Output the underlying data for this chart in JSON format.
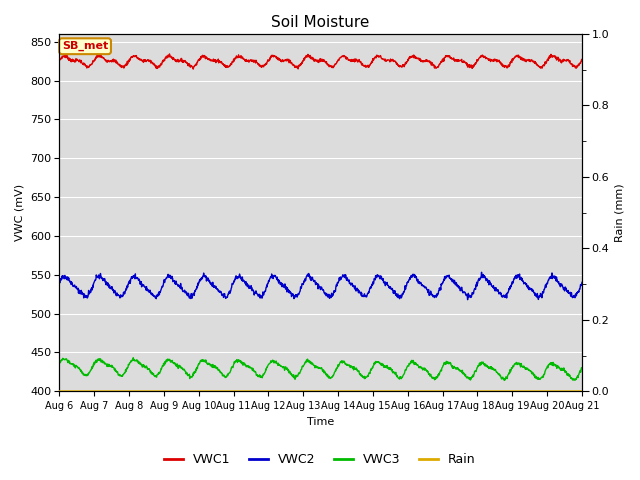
{
  "title": "Soil Moisture",
  "xlabel": "Time",
  "ylabel_left": "VWC (mV)",
  "ylabel_right": "Rain (mm)",
  "ylim_left": [
    400,
    860
  ],
  "ylim_right": [
    0.0,
    1.0
  ],
  "yticks_left": [
    400,
    450,
    500,
    550,
    600,
    650,
    700,
    750,
    800,
    850
  ],
  "yticks_right": [
    0.0,
    0.2,
    0.4,
    0.6,
    0.8,
    1.0
  ],
  "xtick_labels": [
    "Aug 6",
    "Aug 7",
    "Aug 8",
    "Aug 9",
    "Aug 10",
    "Aug 11",
    "Aug 12",
    "Aug 13",
    "Aug 14",
    "Aug 15",
    "Aug 16",
    "Aug 17",
    "Aug 18",
    "Aug 19",
    "Aug 20",
    "Aug 21"
  ],
  "site_label": "SB_met",
  "site_label_bg": "#ffffcc",
  "site_label_border": "#cc8800",
  "site_label_text_color": "#cc0000",
  "vwc1_color": "#dd0000",
  "vwc2_color": "#0000cc",
  "vwc3_color": "#00bb00",
  "rain_color": "#ddaa00",
  "bg_color": "#dcdcdc",
  "grid_color": "#ffffff",
  "n_points": 1500,
  "vwc1_base": 825,
  "vwc1_amp": 5,
  "vwc1_amp2": 3,
  "vwc2_base": 535,
  "vwc2_amp": 12,
  "vwc3_base": 432,
  "vwc3_amp": 9
}
